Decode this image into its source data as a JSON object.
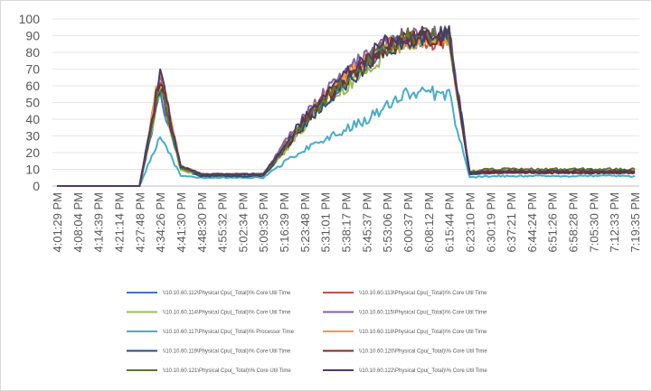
{
  "chart_data": {
    "type": "line",
    "title": "",
    "xlabel": "",
    "ylabel": "",
    "ylim": [
      0,
      100
    ],
    "yticks": [
      0,
      10,
      20,
      30,
      40,
      50,
      60,
      70,
      80,
      90,
      100
    ],
    "grid": "horizontal",
    "legend_position": "bottom",
    "x": [
      "4:01:29 PM",
      "4:08:04 PM",
      "4:14:39 PM",
      "4:21:14 PM",
      "4:27:48 PM",
      "4:34:26 PM",
      "4:41:30 PM",
      "4:48:30 PM",
      "4:55:32 PM",
      "5:02:34 PM",
      "5:09:35 PM",
      "5:16:39 PM",
      "5:23:48 PM",
      "5:31:01 PM",
      "5:38:17 PM",
      "5:45:37 PM",
      "5:53:06 PM",
      "6:00:37 PM",
      "6:08:12 PM",
      "6:15:44 PM",
      "6:23:10 PM",
      "6:30:19 PM",
      "6:37:21 PM",
      "6:44:24 PM",
      "6:51:26 PM",
      "6:58:28 PM",
      "7:05:30 PM",
      "7:12:33 PM",
      "7:19:35 PM"
    ],
    "series": [
      {
        "name": "\\\\10.10.60.112\\Physical Cpu(_Total)\\% Core Util Time",
        "color": "#4472c4",
        "values": [
          0,
          0,
          0,
          0,
          0,
          55,
          10,
          6,
          6,
          6,
          7,
          22,
          38,
          52,
          64,
          74,
          84,
          88,
          88,
          90,
          7,
          8,
          8,
          8,
          8,
          8,
          8,
          8,
          8
        ]
      },
      {
        "name": "\\\\10.10.60.113\\Physical Cpu(_Total)\\% Core Util Time",
        "color": "#c0504d",
        "values": [
          0,
          0,
          0,
          0,
          0,
          65,
          11,
          7,
          7,
          7,
          7,
          24,
          40,
          55,
          66,
          76,
          86,
          88,
          86,
          88,
          8,
          9,
          9,
          9,
          9,
          9,
          9,
          9,
          9
        ]
      },
      {
        "name": "\\\\10.10.60.114\\Physical Cpu(_Total)\\% Core Util Time",
        "color": "#9bbb59",
        "values": [
          0,
          0,
          0,
          0,
          0,
          58,
          10,
          6,
          6,
          6,
          6,
          20,
          36,
          50,
          60,
          70,
          80,
          84,
          90,
          88,
          7,
          8,
          8,
          8,
          8,
          8,
          8,
          8,
          8
        ]
      },
      {
        "name": "\\\\10.10.60.115\\Physical Cpu(_Total)\\% Core Util Time",
        "color": "#8064a2",
        "values": [
          0,
          0,
          0,
          0,
          0,
          68,
          12,
          7,
          7,
          7,
          7,
          25,
          42,
          56,
          68,
          78,
          88,
          90,
          90,
          92,
          8,
          9,
          9,
          9,
          9,
          9,
          9,
          9,
          9
        ]
      },
      {
        "name": "\\\\10.10.60.117\\Physical Cpu(_Total)\\% Processor Time",
        "color": "#4bacc6",
        "values": [
          0,
          0,
          0,
          0,
          0,
          30,
          6,
          5,
          5,
          5,
          5,
          14,
          22,
          28,
          34,
          40,
          48,
          56,
          56,
          54,
          5,
          6,
          6,
          6,
          6,
          6,
          6,
          6,
          6
        ]
      },
      {
        "name": "\\\\10.10.60.118\\Physical Cpu(_Total)\\% Core Util Time",
        "color": "#f79646",
        "values": [
          0,
          0,
          0,
          0,
          0,
          70,
          12,
          7,
          7,
          7,
          7,
          23,
          39,
          54,
          65,
          75,
          85,
          86,
          88,
          90,
          8,
          9,
          9,
          9,
          9,
          9,
          9,
          9,
          9
        ]
      },
      {
        "name": "\\\\10.10.60.119\\Physical Cpu(_Total)\\% Core Util Time",
        "color": "#2c4d75",
        "values": [
          0,
          0,
          0,
          0,
          0,
          60,
          11,
          6,
          6,
          6,
          6,
          21,
          37,
          51,
          62,
          72,
          82,
          87,
          89,
          91,
          7,
          8,
          8,
          8,
          8,
          8,
          8,
          8,
          8
        ]
      },
      {
        "name": "\\\\10.10.60.120\\Physical Cpu(_Total)\\% Core Util Time",
        "color": "#772c2a",
        "values": [
          0,
          0,
          0,
          0,
          0,
          62,
          11,
          7,
          7,
          7,
          7,
          22,
          38,
          53,
          63,
          73,
          83,
          88,
          88,
          89,
          8,
          8,
          8,
          8,
          8,
          8,
          8,
          8,
          8
        ]
      },
      {
        "name": "\\\\10.10.60.121\\Physical Cpu(_Total)\\% Core Util Time",
        "color": "#5f7530",
        "values": [
          0,
          0,
          0,
          0,
          0,
          60,
          11,
          7,
          7,
          7,
          7,
          22,
          38,
          52,
          64,
          74,
          84,
          90,
          90,
          90,
          9,
          10,
          10,
          10,
          10,
          10,
          10,
          10,
          10
        ]
      },
      {
        "name": "\\\\10.10.60.122\\Physical Cpu(_Total)\\% Core Util Time",
        "color": "#4d3b62",
        "values": [
          0,
          0,
          0,
          0,
          0,
          67,
          12,
          7,
          7,
          7,
          7,
          24,
          41,
          55,
          67,
          77,
          87,
          90,
          91,
          92,
          8,
          9,
          9,
          9,
          9,
          9,
          9,
          9,
          9
        ]
      }
    ]
  }
}
